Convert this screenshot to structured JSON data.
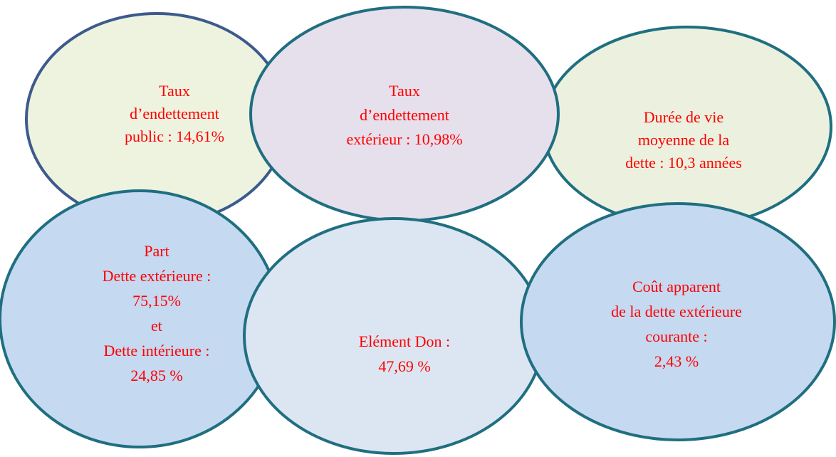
{
  "nodes": [
    {
      "lines": [
        "Taux",
        "d’endettement",
        "public : 14,61%"
      ]
    },
    {
      "lines": [
        "Taux",
        "d’endettement",
        "extérieur : 10,98%"
      ]
    },
    {
      "lines": [
        "Durée de vie",
        "moyenne de la",
        "dette : 10,3 années"
      ]
    },
    {
      "lines": [
        "Part",
        "Dette extérieure :",
        "75,15%",
        "et",
        "Dette intérieure :",
        "24,85 %"
      ]
    },
    {
      "lines": [
        "Elément Don :",
        "47,69 %"
      ]
    },
    {
      "lines": [
        "Coût apparent",
        "de la dette extérieure",
        "courante :",
        "2,43 %"
      ]
    }
  ]
}
